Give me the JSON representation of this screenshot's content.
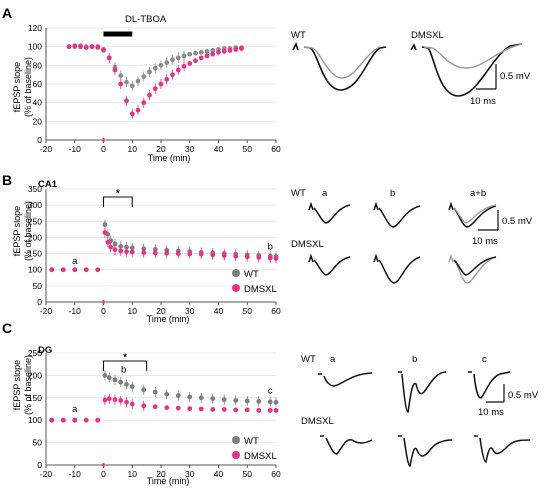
{
  "chart_data": [
    {
      "panel": "A",
      "type": "scatter",
      "drug_label": "DL-TBOA",
      "drug_bar": [
        0,
        10
      ],
      "xlabel": "Time (min)",
      "ylabel": [
        "fEPSP slope",
        "(% of baseline)"
      ],
      "xlim": [
        -20,
        60
      ],
      "ylim": [
        0,
        120
      ],
      "xticks": [
        -20,
        -10,
        0,
        10,
        20,
        30,
        40,
        50,
        60
      ],
      "yticks": [
        0,
        20,
        40,
        60,
        80,
        100,
        120
      ],
      "grid": true,
      "series": [
        {
          "color": "#8c8c8c",
          "x": [
            -12,
            -10,
            -8,
            -6,
            -4,
            -2,
            0,
            2,
            4,
            6,
            8,
            10,
            12,
            14,
            16,
            18,
            20,
            22,
            24,
            26,
            28,
            30,
            32,
            34,
            36,
            38,
            40,
            42,
            44,
            46,
            48
          ],
          "y": [
            100,
            100,
            101,
            100,
            100,
            99,
            96,
            88,
            78,
            69,
            62,
            58,
            63,
            68,
            73,
            77,
            80,
            83,
            86,
            88,
            90,
            92,
            93,
            94,
            95,
            96,
            97,
            98,
            98,
            99,
            99
          ]
        },
        {
          "color": "#e6338a",
          "x": [
            -12,
            -10,
            -8,
            -6,
            -4,
            -2,
            0,
            2,
            4,
            6,
            8,
            10,
            12,
            14,
            16,
            18,
            20,
            22,
            24,
            26,
            28,
            30,
            32,
            34,
            36,
            38,
            40,
            42,
            44,
            46,
            48
          ],
          "y": [
            100,
            101,
            100,
            99,
            100,
            100,
            97,
            88,
            75,
            60,
            42,
            28,
            32,
            40,
            48,
            55,
            60,
            65,
            70,
            75,
            79,
            82,
            85,
            88,
            90,
            92,
            94,
            95,
            96,
            97,
            98
          ]
        }
      ],
      "traces": {
        "labels": [
          "WT",
          "DMSXL"
        ],
        "scale_v": "0.5 mV",
        "scale_t": "10 ms"
      }
    },
    {
      "panel": "B",
      "type": "scatter",
      "region": "CA1",
      "xlabel": "Time (min)",
      "ylabel": [
        "fEPSP slope",
        "(% of baseline)"
      ],
      "xlim": [
        -20,
        60
      ],
      "ylim": [
        0,
        350
      ],
      "xticks": [
        -20,
        -10,
        0,
        10,
        20,
        30,
        40,
        50,
        60
      ],
      "yticks": [
        0,
        50,
        100,
        150,
        200,
        250,
        300,
        350
      ],
      "grid": true,
      "sig_mark": "*",
      "sig_range": [
        0,
        10
      ],
      "markers": [
        {
          "text": "a",
          "x": -10,
          "y": 118
        },
        {
          "text": "b",
          "x": 58,
          "y": 163
        }
      ],
      "legend": [
        "WT",
        "DMSXL"
      ],
      "legend_position": "lower-right",
      "series": [
        {
          "name": "WT",
          "color": "#7f7f7f",
          "x": [
            -18,
            -14,
            -10,
            -6,
            -2,
            0.5,
            1.5,
            2.5,
            4,
            6,
            8,
            10,
            14,
            18,
            22,
            26,
            30,
            34,
            38,
            42,
            46,
            50,
            54,
            58,
            60
          ],
          "y": [
            100,
            100,
            100,
            100,
            100,
            240,
            210,
            190,
            180,
            172,
            170,
            168,
            165,
            163,
            160,
            158,
            156,
            154,
            152,
            150,
            148,
            146,
            144,
            142,
            140
          ]
        },
        {
          "name": "DMSXL",
          "color": "#e6338a",
          "x": [
            -18,
            -14,
            -10,
            -6,
            -2,
            0.5,
            1.5,
            2.5,
            4,
            6,
            8,
            10,
            14,
            18,
            22,
            26,
            30,
            34,
            38,
            42,
            46,
            50,
            54,
            58,
            60
          ],
          "y": [
            100,
            100,
            100,
            100,
            100,
            215,
            185,
            170,
            162,
            158,
            156,
            155,
            153,
            152,
            151,
            150,
            149,
            148,
            146,
            144,
            142,
            140,
            138,
            136,
            135
          ]
        }
      ],
      "traces": {
        "row_labels": [
          "WT",
          "DMSXL"
        ],
        "col_labels": [
          "a",
          "b",
          "a+b"
        ],
        "scale_v": "0.5 mV",
        "scale_t": "10 ms"
      }
    },
    {
      "panel": "C",
      "type": "scatter",
      "region": "DG",
      "xlabel": "Time (min)",
      "ylabel": [
        "fEPSP slope",
        "(% of baseline)"
      ],
      "xlim": [
        -20,
        60
      ],
      "ylim": [
        0,
        250
      ],
      "xticks": [
        -20,
        -10,
        0,
        10,
        20,
        30,
        40,
        50,
        60
      ],
      "yticks": [
        0,
        50,
        100,
        150,
        200,
        250
      ],
      "grid": true,
      "sig_mark": "*",
      "sig_range": [
        0,
        15
      ],
      "markers": [
        {
          "text": "a",
          "x": -10,
          "y": 118
        },
        {
          "text": "b",
          "x": 7,
          "y": 207
        },
        {
          "text": "c",
          "x": 58,
          "y": 160
        }
      ],
      "legend": [
        "WT",
        "DMSXL"
      ],
      "legend_position": "lower-right",
      "series": [
        {
          "name": "WT",
          "color": "#7f7f7f",
          "x": [
            -18,
            -14,
            -10,
            -6,
            -2,
            0.5,
            2,
            4,
            6,
            8,
            10,
            14,
            18,
            22,
            26,
            30,
            34,
            38,
            42,
            46,
            50,
            54,
            58,
            60
          ],
          "y": [
            100,
            100,
            100,
            100,
            100,
            200,
            195,
            190,
            185,
            180,
            175,
            168,
            163,
            158,
            155,
            152,
            150,
            148,
            146,
            144,
            143,
            142,
            141,
            140
          ]
        },
        {
          "name": "DMSXL",
          "color": "#e6338a",
          "x": [
            -18,
            -14,
            -10,
            -6,
            -2,
            0.5,
            2,
            4,
            6,
            8,
            10,
            14,
            18,
            22,
            26,
            30,
            34,
            38,
            42,
            46,
            50,
            54,
            58,
            60
          ],
          "y": [
            100,
            100,
            100,
            100,
            100,
            145,
            148,
            146,
            144,
            140,
            136,
            132,
            130,
            128,
            127,
            126,
            125,
            124,
            124,
            123,
            123,
            122,
            122,
            122
          ]
        }
      ],
      "traces": {
        "row_labels": [
          "WT",
          "DMSXL"
        ],
        "col_labels": [
          "a",
          "b",
          "c"
        ],
        "scale_v": "0.5 mV",
        "scale_t": "10 ms"
      }
    }
  ]
}
